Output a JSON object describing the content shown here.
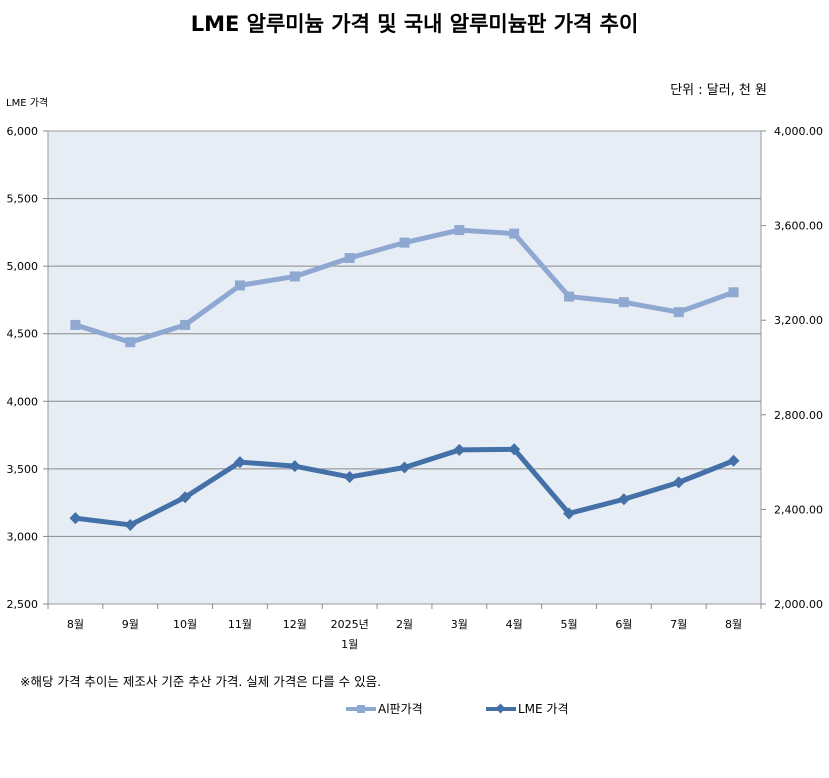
{
  "title": "LME 알루미늄 가격 및 국내 알루미늄판 가격 추이",
  "unit_label": "단위 : 달러, 천 원",
  "note": "※해당 가격 추이는 제조사 기준 추산 가격. 실제 가격은 다를 수 있음.",
  "chart_data": {
    "type": "line",
    "title": "LME 알루미늄 가격 및 국내 알루미늄판 가격 추이",
    "ylabel": "LME 가격",
    "categories": [
      "8월",
      "9월",
      "10월",
      "11월",
      "12월",
      "2025년 1월",
      "2월",
      "3월",
      "4월",
      "5월",
      "6월",
      "7월",
      "8월"
    ],
    "category_lines": [
      [
        "8월"
      ],
      [
        "9월"
      ],
      [
        "10월"
      ],
      [
        "11월"
      ],
      [
        "12월"
      ],
      [
        "2025년",
        "1월"
      ],
      [
        "2월"
      ],
      [
        "3월"
      ],
      [
        "4월"
      ],
      [
        "5월"
      ],
      [
        "6월"
      ],
      [
        "7월"
      ],
      [
        "8월"
      ]
    ],
    "left_axis": {
      "min": 2500,
      "max": 6000,
      "step": 500,
      "ticks": [
        "2,500",
        "3,000",
        "3,500",
        "4,000",
        "4,500",
        "5,000",
        "5,500",
        "6,000"
      ]
    },
    "right_axis": {
      "min": 2000,
      "max": 4000,
      "step": 400,
      "ticks": [
        "2,000.00",
        "2,400.00",
        "2,800.00",
        "3,200.00",
        "3,600.00",
        "4,000.00"
      ]
    },
    "series": [
      {
        "name": "Al판가격",
        "axis": "right",
        "color": "#8fa8d2",
        "marker": "square",
        "values": [
          3180,
          3107,
          3180,
          3347,
          3385,
          3463,
          3528,
          3581,
          3566,
          3300,
          3276,
          3234,
          3318
        ]
      },
      {
        "name": "LME 가격",
        "axis": "left",
        "color": "#4470a8",
        "marker": "diamond",
        "values": [
          3135,
          3085,
          3290,
          3550,
          3520,
          3440,
          3510,
          3640,
          3645,
          3170,
          3275,
          3400,
          3560
        ]
      }
    ],
    "grid": true,
    "legend_position": "bottom"
  }
}
